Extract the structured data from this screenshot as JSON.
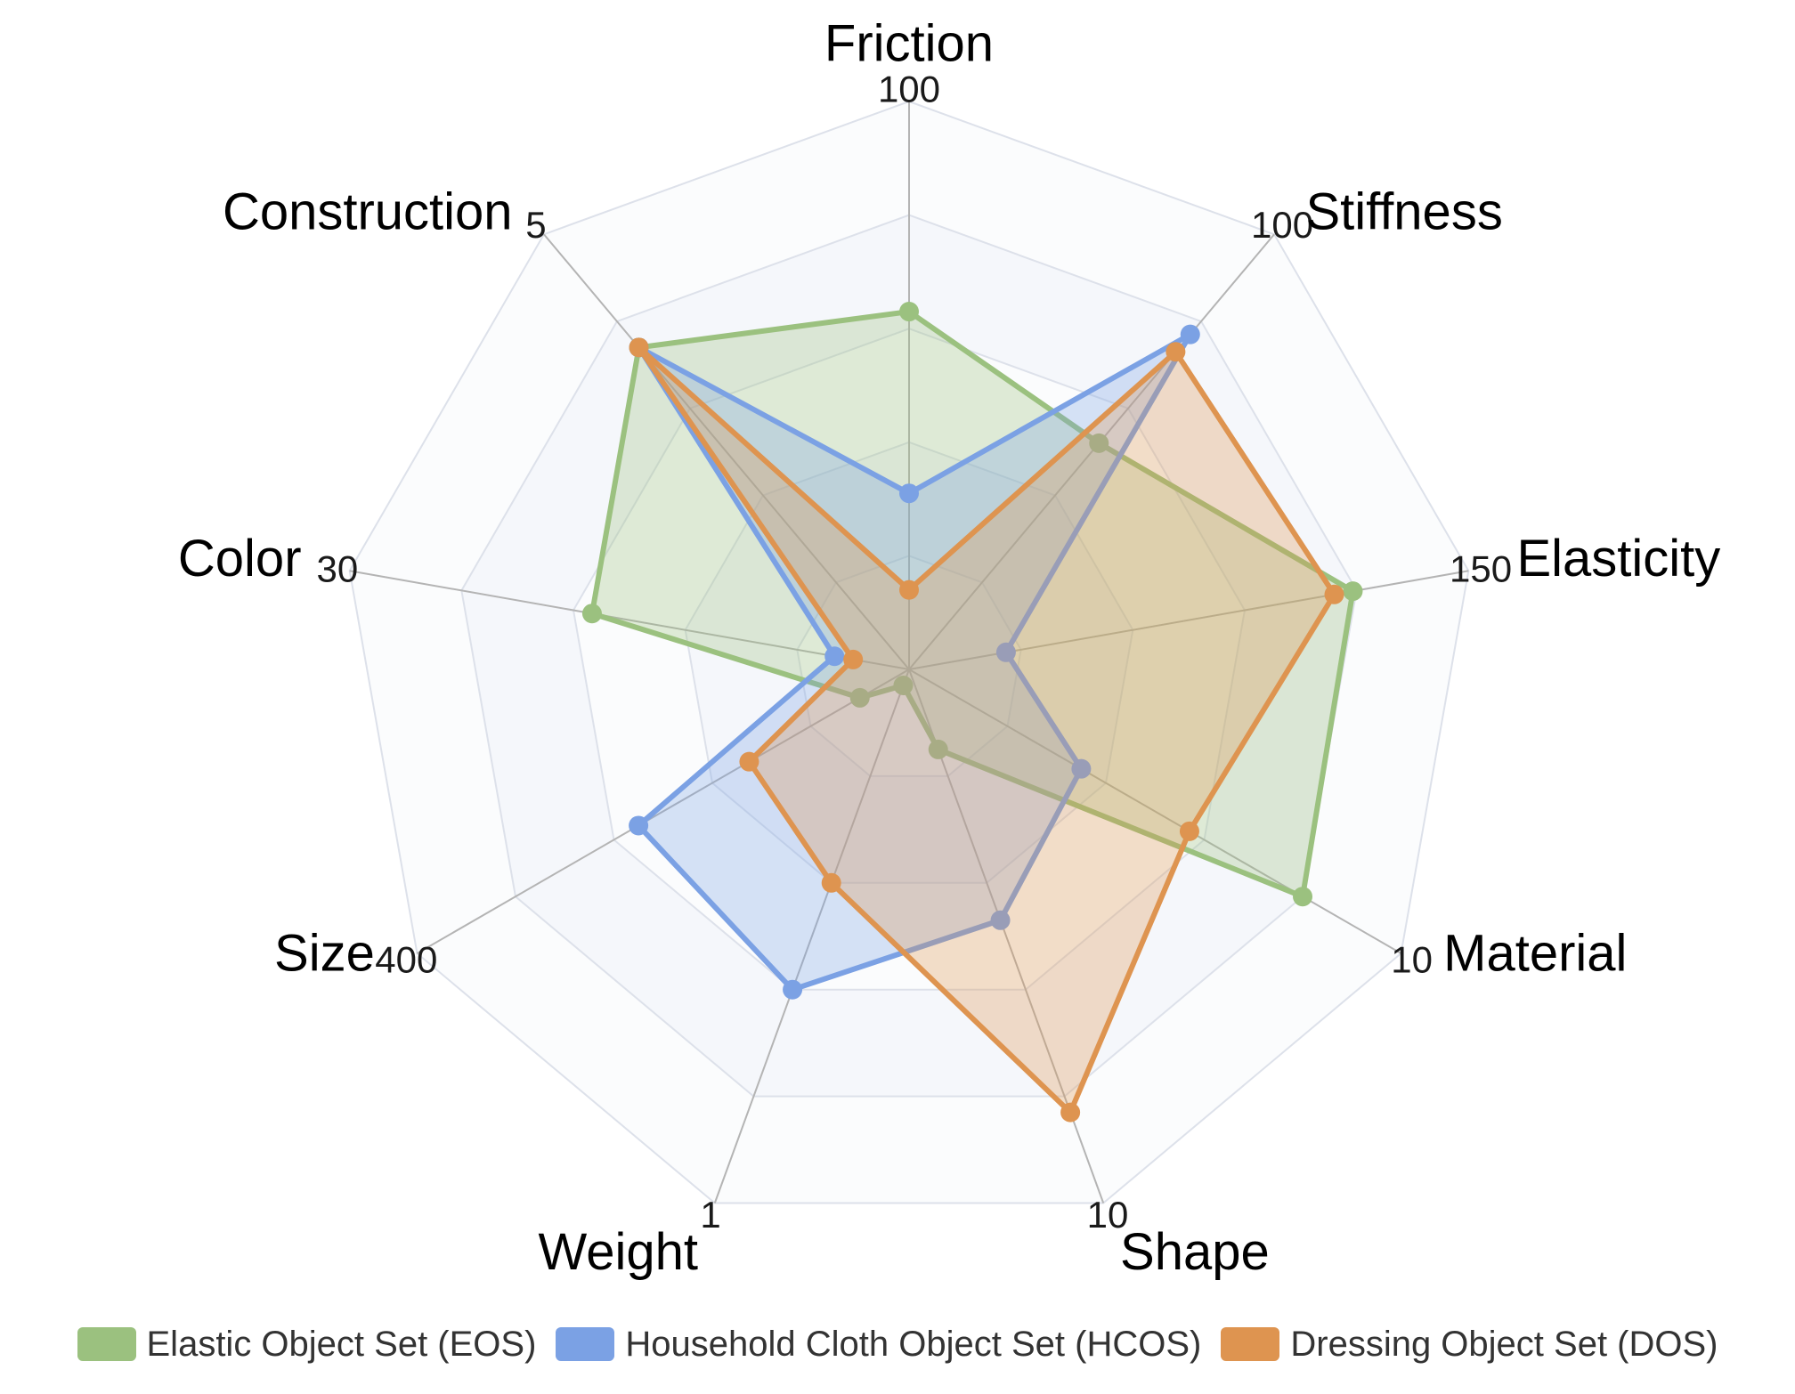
{
  "chart_data": {
    "type": "radar",
    "axes": [
      {
        "name": "Friction",
        "max": 100,
        "max_label": "100"
      },
      {
        "name": "Stiffness",
        "max": 100,
        "max_label": "100"
      },
      {
        "name": "Elasticity",
        "max": 150,
        "max_label": "150"
      },
      {
        "name": "Material",
        "max": 10,
        "max_label": "10"
      },
      {
        "name": "Shape",
        "max": 10,
        "max_label": "10"
      },
      {
        "name": "Weight",
        "max": 1,
        "max_label": "1"
      },
      {
        "name": "Size",
        "max": 400,
        "max_label": "400"
      },
      {
        "name": "Color",
        "max": 30,
        "max_label": "30"
      },
      {
        "name": "Construction",
        "max": 5,
        "max_label": "5"
      }
    ],
    "series": [
      {
        "name": "Elastic Object Set (EOS)",
        "color": "#9bc17f",
        "values": [
          63,
          52,
          119,
          8,
          1.5,
          0.03,
          40,
          17,
          3.7
        ]
      },
      {
        "name": "Household Cloth Object Set (HCOS)",
        "color": "#7ba1e4",
        "values": [
          31,
          77,
          26,
          3.5,
          4.7,
          0.6,
          220,
          4,
          3.7
        ]
      },
      {
        "name": "Dressing Object Set (DOS)",
        "color": "#de9450",
        "values": [
          14,
          73,
          114,
          5.7,
          8.3,
          0.4,
          130,
          3,
          3.7
        ]
      }
    ],
    "grid_levels": 5,
    "legend_position": "bottom"
  }
}
